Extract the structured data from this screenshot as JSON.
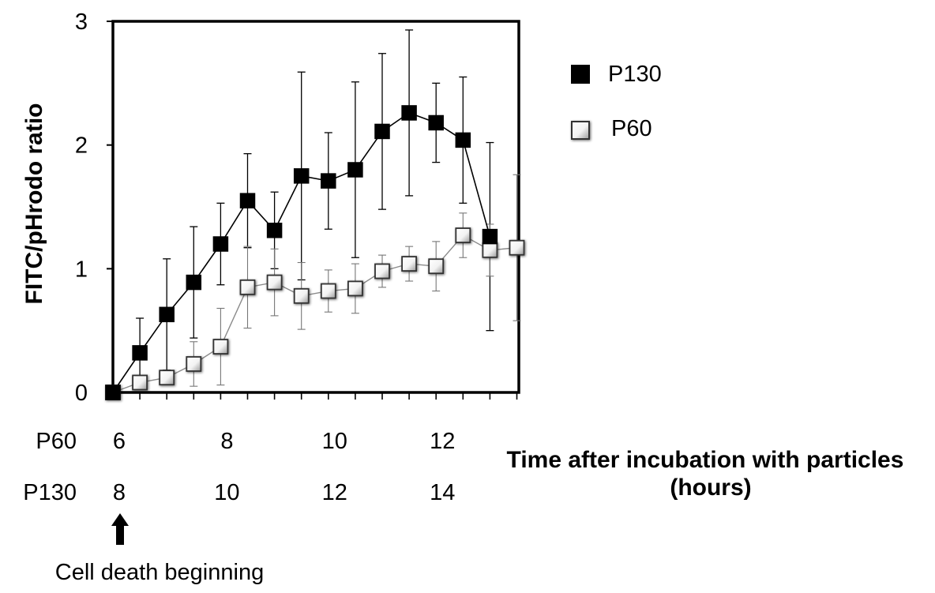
{
  "chart_data": {
    "type": "line",
    "ylabel": "FITC/pHrodo ratio",
    "xlabel_line1": "Time after incubation with particles",
    "xlabel_line2": "(hours)",
    "ylim": [
      0,
      3
    ],
    "yticks": [
      "0",
      "1",
      "2",
      "3"
    ],
    "grid": false,
    "legend_position": "right",
    "x_rows": [
      {
        "name": "P60",
        "ticks": [
          {
            "label": "6",
            "x": 0
          },
          {
            "label": "8",
            "x": 4
          },
          {
            "label": "10",
            "x": 8
          },
          {
            "label": "12",
            "x": 12
          }
        ]
      },
      {
        "name": "P130",
        "ticks": [
          {
            "label": "8",
            "x": 0
          },
          {
            "label": "10",
            "x": 4
          },
          {
            "label": "12",
            "x": 8
          },
          {
            "label": "14",
            "x": 12
          }
        ]
      }
    ],
    "annotation": "Cell death beginning",
    "series": [
      {
        "name": "P130",
        "marker": "filled-square",
        "color": "#000000",
        "x": [
          0,
          1,
          2,
          3,
          4,
          5,
          6,
          7,
          8,
          9,
          10,
          11,
          12,
          13,
          14
        ],
        "y": [
          0.0,
          0.32,
          0.63,
          0.89,
          1.2,
          1.55,
          1.31,
          1.75,
          1.71,
          1.8,
          2.11,
          2.26,
          2.18,
          2.04,
          1.26
        ],
        "err": [
          0.0,
          0.28,
          0.45,
          0.45,
          0.33,
          0.38,
          0.31,
          0.84,
          0.39,
          0.71,
          0.63,
          0.67,
          0.32,
          0.51,
          0.76
        ]
      },
      {
        "name": "P60",
        "marker": "open-square",
        "color": "#7a7a7a",
        "x": [
          0,
          1,
          2,
          3,
          4,
          5,
          6,
          7,
          8,
          9,
          10,
          11,
          12,
          13,
          14,
          15
        ],
        "y": [
          0.0,
          0.08,
          0.12,
          0.23,
          0.37,
          0.85,
          0.89,
          0.78,
          0.82,
          0.84,
          0.98,
          1.04,
          1.02,
          1.27,
          1.15,
          1.17
        ],
        "err": [
          0.0,
          0.0,
          0.0,
          0.18,
          0.31,
          0.33,
          0.27,
          0.27,
          0.17,
          0.2,
          0.13,
          0.14,
          0.2,
          0.18,
          0.21,
          0.59
        ]
      }
    ]
  }
}
